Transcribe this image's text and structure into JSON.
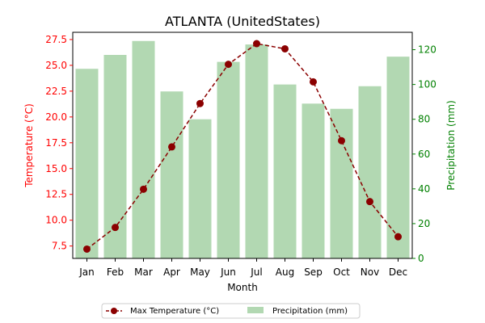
{
  "chart_data": {
    "type": "bar+line",
    "title": "ATLANTA (UnitedStates)",
    "xlabel": "Month",
    "ylabel_left": "Temperature (°C)",
    "ylabel_right": "Precipitation (mm)",
    "categories": [
      "Jan",
      "Feb",
      "Mar",
      "Apr",
      "May",
      "Jun",
      "Jul",
      "Aug",
      "Sep",
      "Oct",
      "Nov",
      "Dec"
    ],
    "series": [
      {
        "name": "Max Temperature (°C)",
        "type": "line",
        "axis": "left",
        "color": "#8b0000",
        "values": [
          7.2,
          9.3,
          13.0,
          17.1,
          21.3,
          25.1,
          27.1,
          26.6,
          23.4,
          17.7,
          11.8,
          8.4
        ]
      },
      {
        "name": "Precipitation (mm)",
        "type": "bar",
        "axis": "right",
        "color": "#b2d8b2",
        "values": [
          109,
          117,
          125,
          96,
          80,
          113,
          123,
          100,
          89,
          86,
          99,
          116
        ]
      }
    ],
    "ylim_left": [
      6.3,
      28.2
    ],
    "yticks_left": [
      "7.5",
      "10.0",
      "12.5",
      "15.0",
      "17.5",
      "20.0",
      "22.5",
      "25.0",
      "27.5"
    ],
    "ylim_right": [
      0,
      130
    ],
    "yticks_right": [
      "0",
      "20",
      "40",
      "60",
      "80",
      "100",
      "120"
    ],
    "left_axis_color": "#ff0000",
    "right_axis_color": "#008000",
    "grid": false,
    "legend_position": "bottom-center"
  }
}
